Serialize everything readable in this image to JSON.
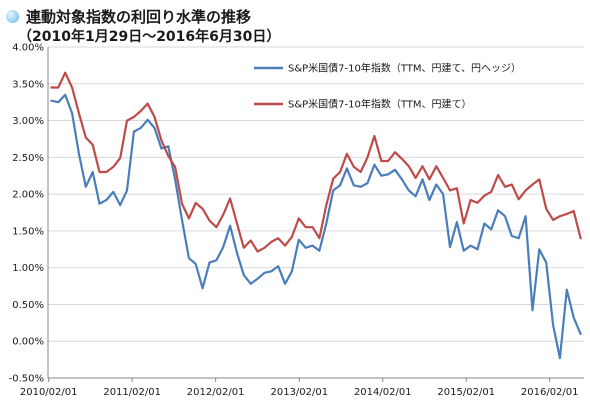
{
  "header": {
    "title": "連動対象指数の利回り水準の推移",
    "subtitle": "（2010年1月29日～2016年6月30日）"
  },
  "chart_data": {
    "type": "line",
    "title": "連動対象指数の利回り水準の推移",
    "subtitle": "（2010年1月29日～2016年6月30日）",
    "xlabel": "",
    "ylabel": "",
    "x_ticks": [
      "2010/02/01",
      "2011/02/01",
      "2012/02/01",
      "2013/02/01",
      "2014/02/01",
      "2015/02/01",
      "2016/02/01"
    ],
    "y_ticks": [
      "4.00%",
      "3.50%",
      "3.00%",
      "2.50%",
      "2.00%",
      "1.50%",
      "1.00%",
      "0.50%",
      "0.00%",
      "-0.50%"
    ],
    "ylim": [
      -0.5,
      4.0
    ],
    "x_start": "2010/01/29",
    "x_end": "2016/06/30",
    "grid": true,
    "legend_position": "top-right",
    "series": [
      {
        "name": "S&P米国債7-10年指数（TTM、円建て、円ヘッジ）",
        "color": "#4a7ebb",
        "values": [
          3.27,
          3.25,
          3.35,
          3.1,
          2.55,
          2.1,
          2.3,
          1.87,
          1.92,
          2.03,
          1.85,
          2.05,
          2.85,
          2.9,
          3.01,
          2.9,
          2.62,
          2.65,
          2.2,
          1.65,
          1.13,
          1.05,
          0.72,
          1.07,
          1.1,
          1.28,
          1.57,
          1.2,
          0.9,
          0.78,
          0.85,
          0.93,
          0.95,
          1.02,
          0.78,
          0.95,
          1.38,
          1.27,
          1.3,
          1.23,
          1.6,
          2.05,
          2.12,
          2.35,
          2.12,
          2.1,
          2.15,
          2.4,
          2.25,
          2.27,
          2.33,
          2.2,
          2.05,
          1.97,
          2.2,
          1.92,
          2.13,
          2.0,
          1.28,
          1.62,
          1.23,
          1.3,
          1.25,
          1.6,
          1.52,
          1.78,
          1.7,
          1.43,
          1.4,
          1.7,
          0.42,
          1.25,
          1.07,
          0.22,
          -0.23,
          0.7,
          0.32,
          0.1
        ]
      },
      {
        "name": "S&P米国債7-10年指数（TTM、円建て）",
        "color": "#be4b48",
        "values": [
          3.45,
          3.45,
          3.65,
          3.45,
          3.1,
          2.77,
          2.67,
          2.3,
          2.3,
          2.37,
          2.49,
          3.0,
          3.05,
          3.13,
          3.23,
          3.05,
          2.73,
          2.52,
          2.37,
          1.87,
          1.67,
          1.88,
          1.8,
          1.64,
          1.55,
          1.72,
          1.94,
          1.6,
          1.27,
          1.37,
          1.22,
          1.27,
          1.35,
          1.4,
          1.3,
          1.42,
          1.67,
          1.55,
          1.55,
          1.4,
          1.85,
          2.21,
          2.3,
          2.55,
          2.37,
          2.3,
          2.5,
          2.79,
          2.45,
          2.45,
          2.57,
          2.48,
          2.38,
          2.22,
          2.38,
          2.2,
          2.38,
          2.22,
          2.05,
          2.08,
          1.6,
          1.92,
          1.88,
          1.98,
          2.03,
          2.26,
          2.1,
          2.13,
          1.93,
          2.05,
          2.13,
          2.2,
          1.8,
          1.65,
          1.7,
          1.73,
          1.77,
          1.4
        ]
      }
    ]
  }
}
